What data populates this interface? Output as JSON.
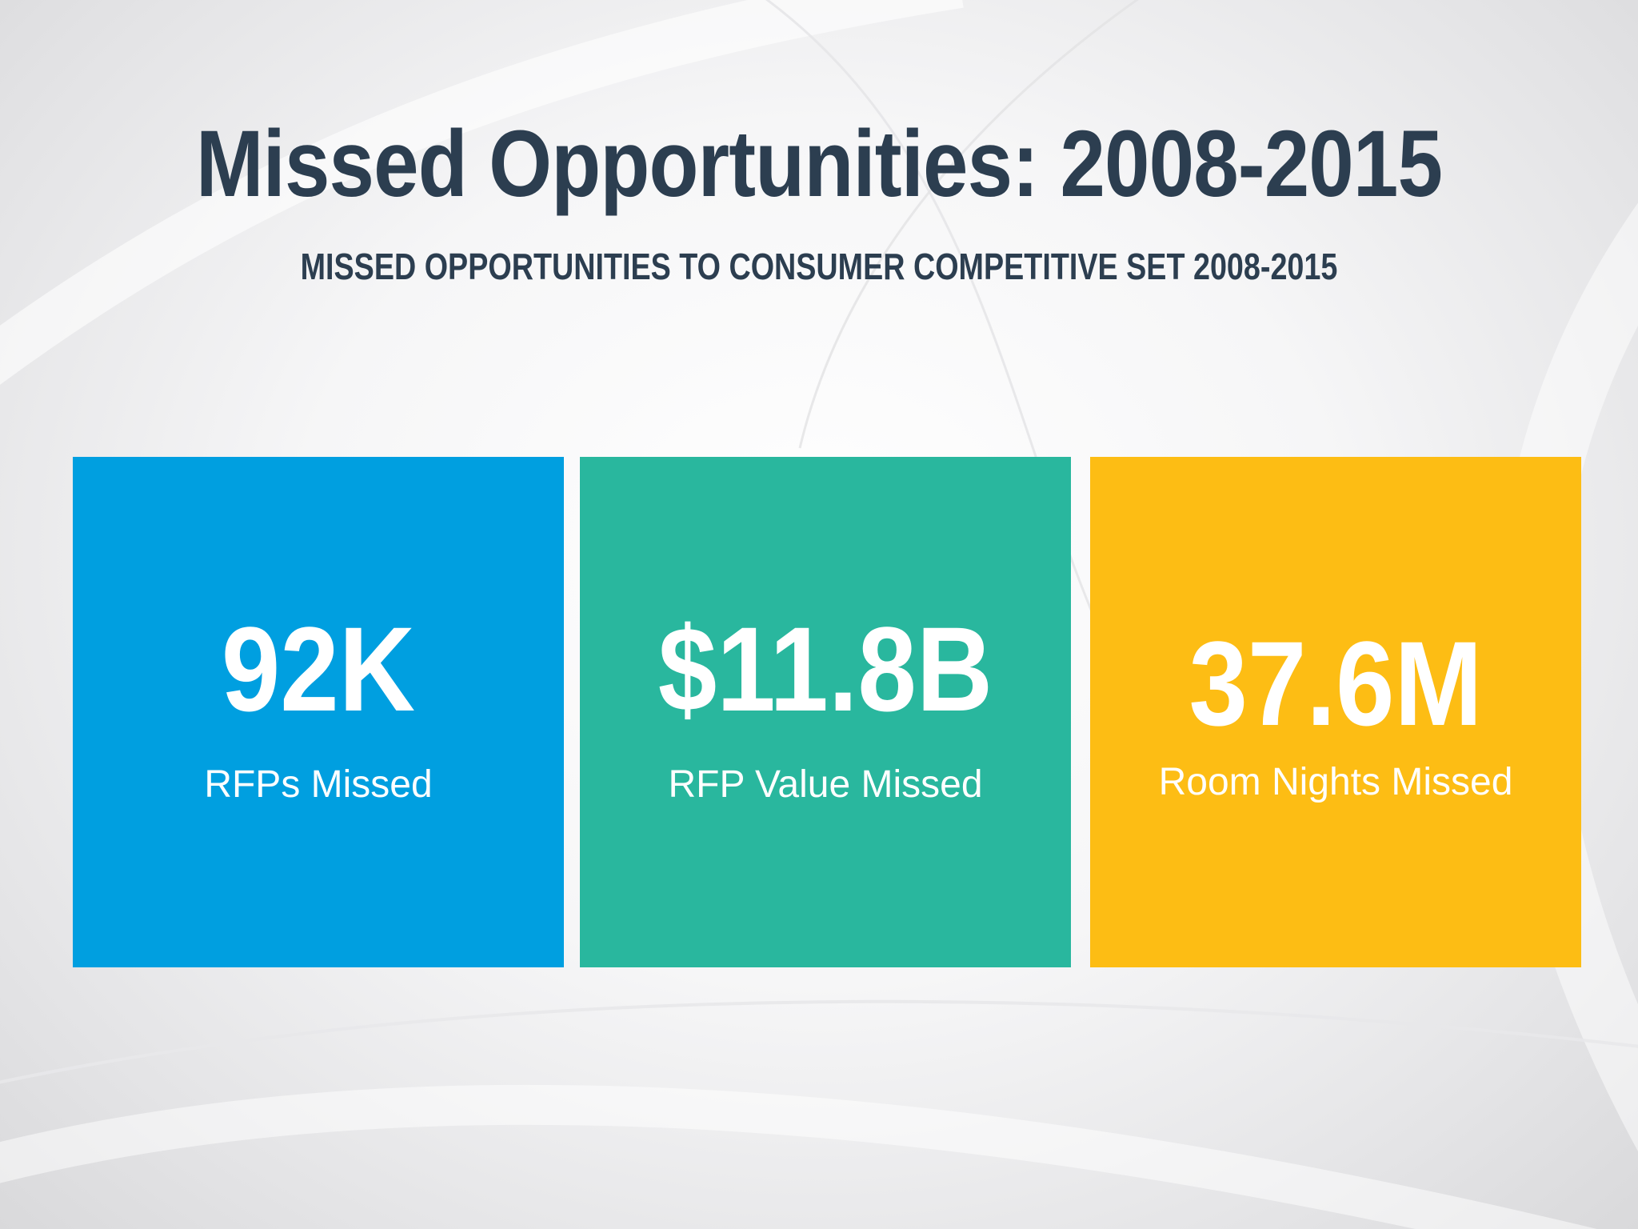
{
  "slide": {
    "title": "Missed Opportunities: 2008-2015",
    "subtitle": "MISSED OPPORTUNITIES TO CONSUMER COMPETITIVE SET 2008-2015"
  },
  "stats": [
    {
      "value": "92K",
      "label": "RFPs Missed",
      "color": "#009fe0"
    },
    {
      "value": "$11.8B",
      "label": "RFP Value Missed",
      "color": "#29b79e"
    },
    {
      "value": "37.6M",
      "label": "Room Nights Missed",
      "color": "#fdbd14"
    }
  ]
}
